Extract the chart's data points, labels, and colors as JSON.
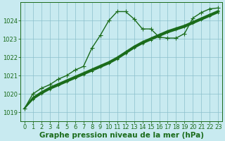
{
  "xlabel": "Graphe pression niveau de la mer (hPa)",
  "hours": [
    0,
    1,
    2,
    3,
    4,
    5,
    6,
    7,
    8,
    9,
    10,
    11,
    12,
    13,
    14,
    15,
    16,
    17,
    18,
    19,
    20,
    21,
    22,
    23
  ],
  "series_jagged": [
    1019.2,
    1020.0,
    1020.3,
    1020.5,
    1020.8,
    1021.0,
    1021.3,
    1021.5,
    1022.5,
    1023.2,
    1024.0,
    1024.5,
    1024.5,
    1024.1,
    1023.55,
    1023.55,
    1023.1,
    1023.05,
    1023.05,
    1023.3,
    1024.15,
    1024.45,
    1024.65,
    1024.7
  ],
  "series_smooth": [
    [
      1019.2,
      1019.7,
      1020.0,
      1020.25,
      1020.45,
      1020.65,
      1020.85,
      1021.05,
      1021.25,
      1021.45,
      1021.65,
      1021.9,
      1022.2,
      1022.5,
      1022.75,
      1022.95,
      1023.15,
      1023.35,
      1023.5,
      1023.65,
      1023.85,
      1024.05,
      1024.25,
      1024.45
    ],
    [
      1019.2,
      1019.75,
      1020.05,
      1020.3,
      1020.5,
      1020.7,
      1020.9,
      1021.1,
      1021.3,
      1021.5,
      1021.7,
      1021.95,
      1022.25,
      1022.55,
      1022.8,
      1023.0,
      1023.2,
      1023.4,
      1023.55,
      1023.7,
      1023.9,
      1024.1,
      1024.3,
      1024.5
    ],
    [
      1019.2,
      1019.8,
      1020.1,
      1020.35,
      1020.55,
      1020.75,
      1020.95,
      1021.15,
      1021.35,
      1021.55,
      1021.75,
      1022.0,
      1022.3,
      1022.6,
      1022.85,
      1023.05,
      1023.25,
      1023.45,
      1023.6,
      1023.75,
      1023.95,
      1024.15,
      1024.35,
      1024.55
    ]
  ],
  "line_color": "#1a6b1a",
  "marker": "+",
  "background_color": "#c8eaf0",
  "grid_color": "#8bbfcc",
  "ylim": [
    1018.5,
    1025.0
  ],
  "yticks": [
    1019,
    1020,
    1021,
    1022,
    1023,
    1024
  ],
  "xlim": [
    -0.5,
    23.5
  ],
  "xticks": [
    0,
    1,
    2,
    3,
    4,
    5,
    6,
    7,
    8,
    9,
    10,
    11,
    12,
    13,
    14,
    15,
    16,
    17,
    18,
    19,
    20,
    21,
    22,
    23
  ],
  "tick_fontsize": 6.0,
  "xlabel_fontsize": 7.5,
  "xlabel_fontweight": "bold"
}
